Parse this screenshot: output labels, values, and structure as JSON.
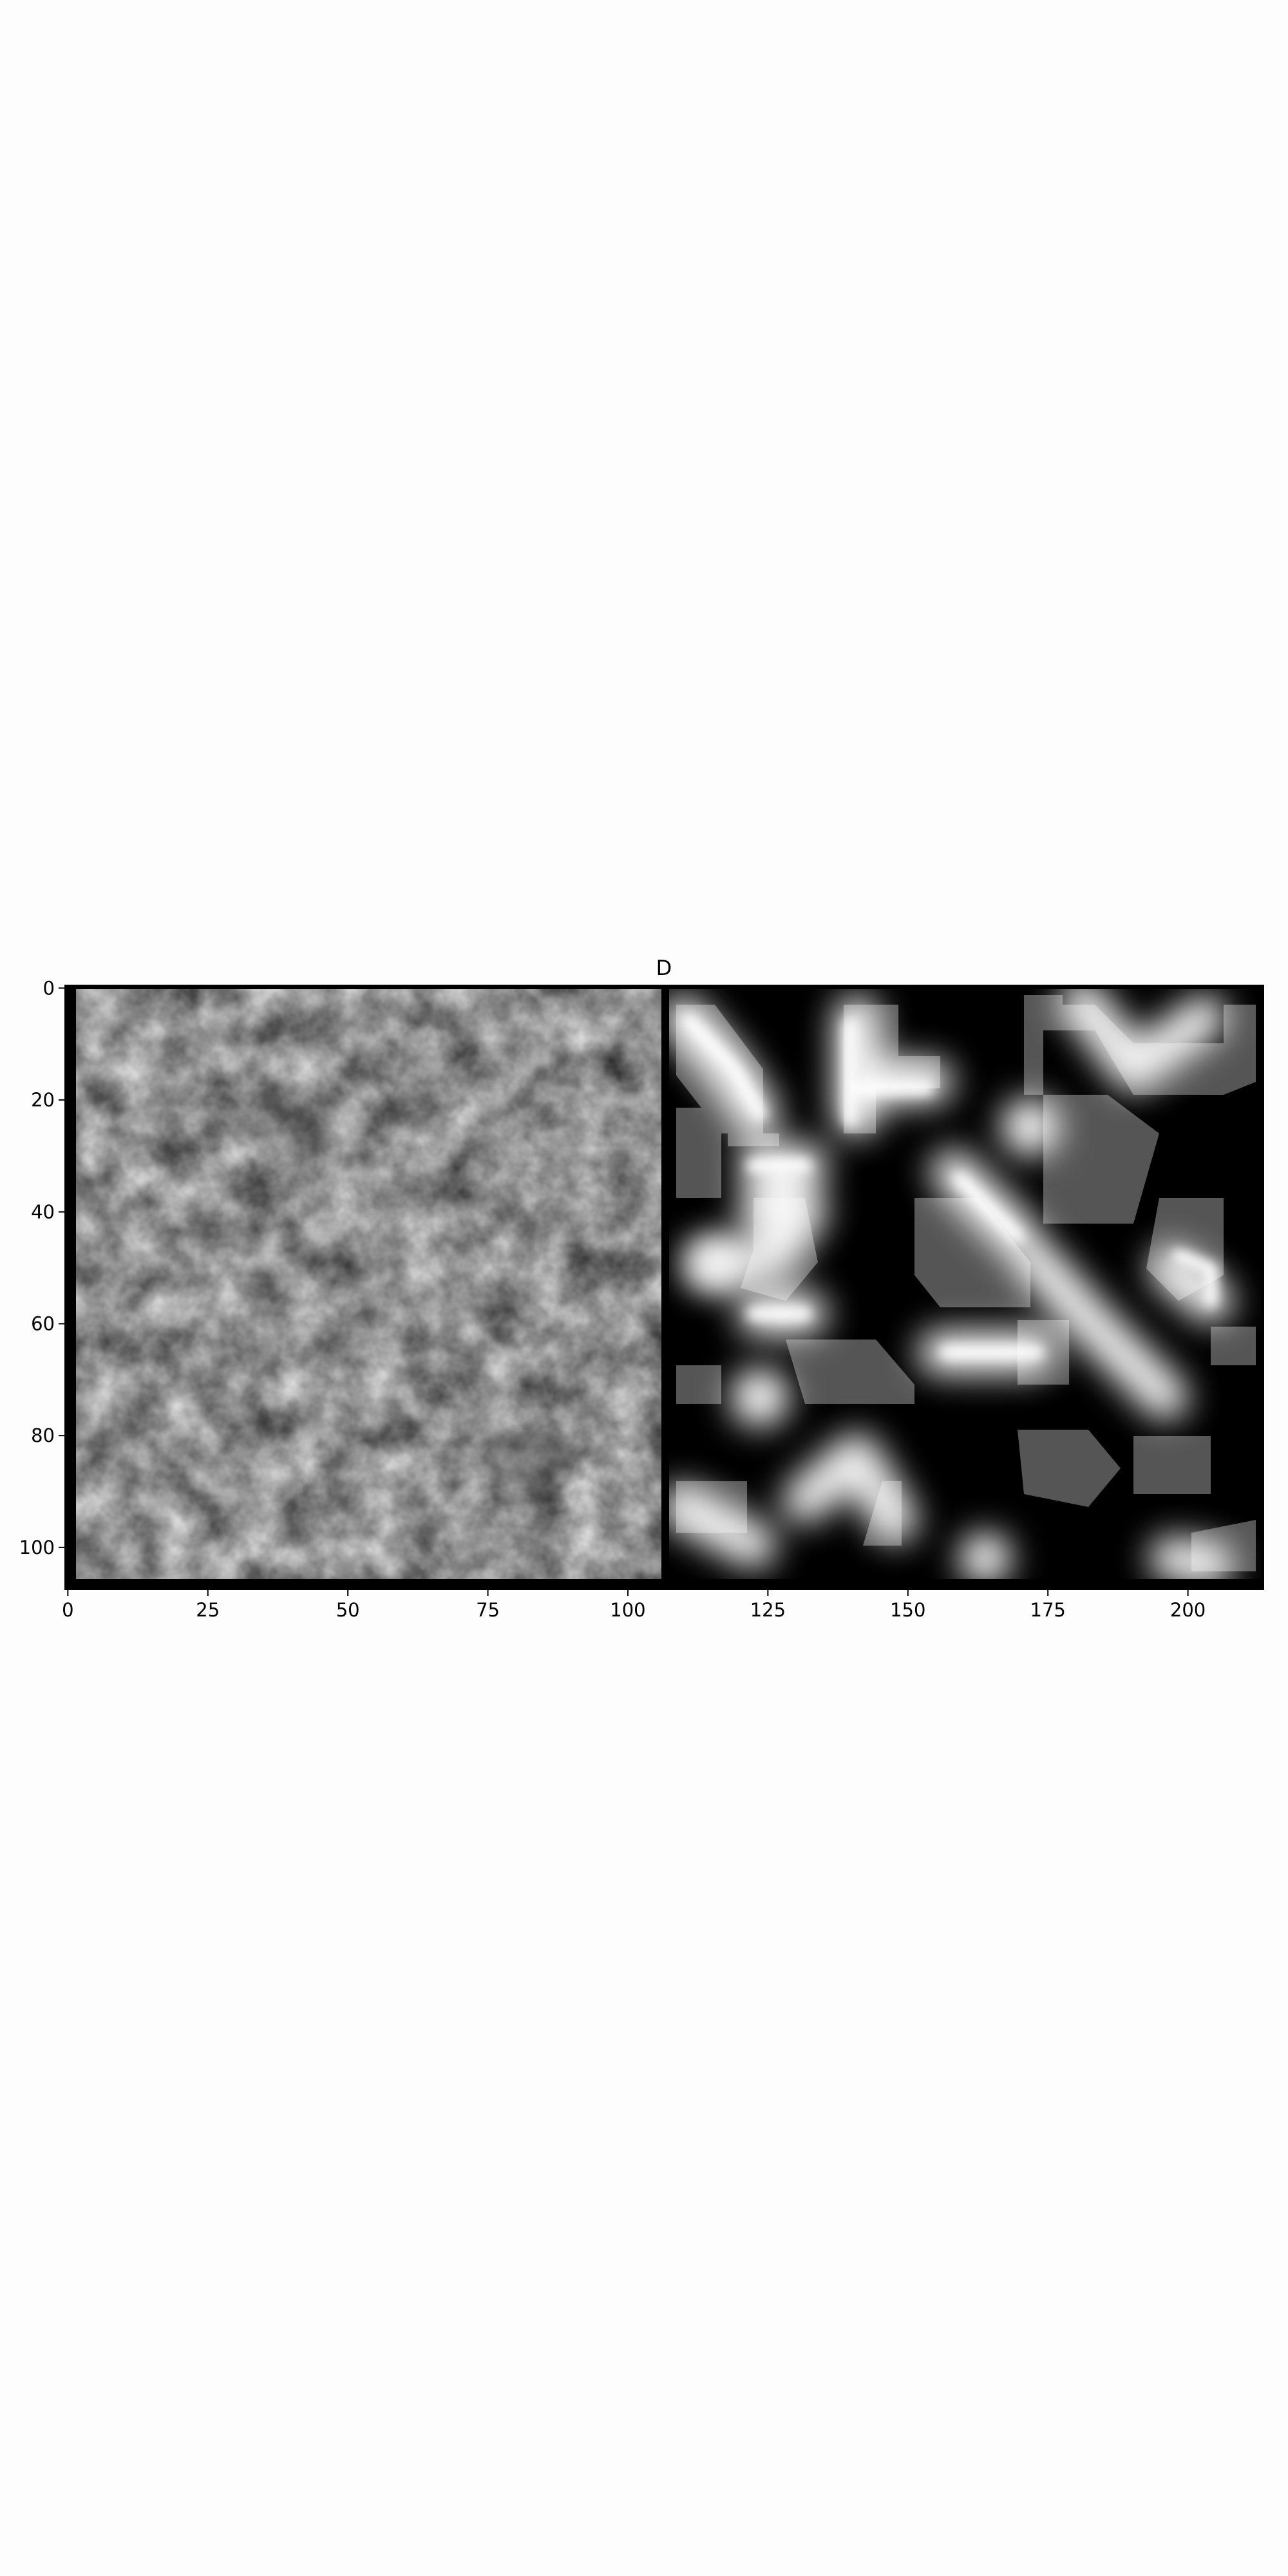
{
  "chart_data": {
    "type": "heatmap",
    "title": "D",
    "xlabel": "",
    "ylabel": "",
    "colormap": "gray",
    "xlim": [
      -0.5,
      213.5
    ],
    "ylim": [
      107.5,
      -0.5
    ],
    "x_ticks": [
      0,
      25,
      50,
      75,
      100,
      125,
      150,
      175,
      200
    ],
    "y_ticks": [
      0,
      20,
      40,
      60,
      80,
      100
    ],
    "x_tick_labels": [
      "0",
      "25",
      "50",
      "75",
      "100",
      "125",
      "150",
      "175",
      "200"
    ],
    "y_tick_labels": [
      "0",
      "20",
      "40",
      "60",
      "80",
      "100"
    ],
    "panels": [
      {
        "name": "left panel",
        "x_range": [
          0,
          106
        ],
        "content": "blurred noise texture, mid-gray"
      },
      {
        "name": "right panel",
        "x_range": [
          107,
          213
        ],
        "content": "glowing white outlines around gray blobs on black"
      }
    ],
    "grid": false,
    "legend": "none"
  }
}
